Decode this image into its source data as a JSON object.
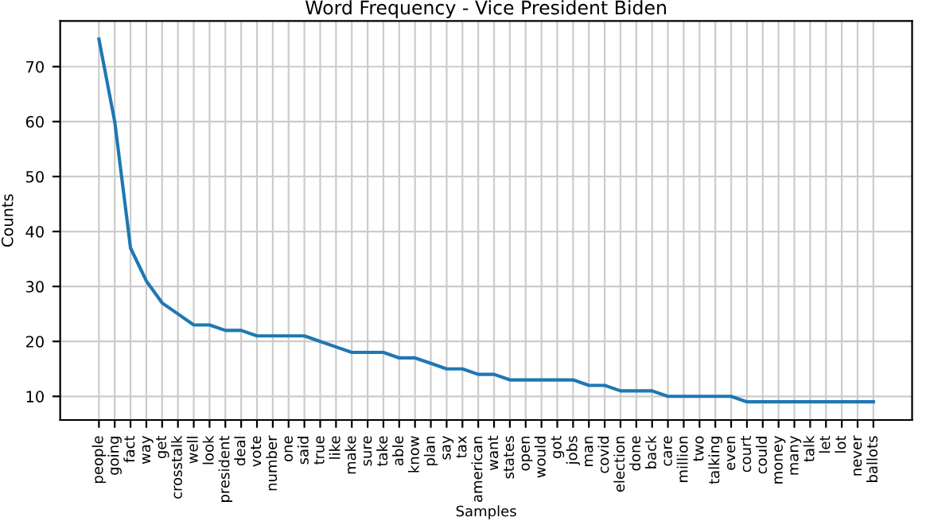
{
  "chart_data": {
    "type": "line",
    "title": "Word Frequency - Vice President Biden",
    "xlabel": "Samples",
    "ylabel": "Counts",
    "categories": [
      "people",
      "going",
      "fact",
      "way",
      "get",
      "crosstalk",
      "well",
      "look",
      "president",
      "deal",
      "vote",
      "number",
      "one",
      "said",
      "true",
      "like",
      "make",
      "sure",
      "take",
      "able",
      "know",
      "plan",
      "say",
      "tax",
      "american",
      "want",
      "states",
      "open",
      "would",
      "got",
      "jobs",
      "man",
      "covid",
      "election",
      "done",
      "back",
      "care",
      "million",
      "two",
      "talking",
      "even",
      "court",
      "could",
      "money",
      "many",
      "talk",
      "let",
      "lot",
      "never",
      "ballots"
    ],
    "series": [
      {
        "color": "#1f77b4",
        "values": [
          75,
          60,
          37,
          31,
          27,
          25,
          23,
          23,
          22,
          22,
          21,
          21,
          21,
          21,
          20,
          19,
          18,
          18,
          18,
          17,
          17,
          16,
          15,
          15,
          14,
          14,
          13,
          13,
          13,
          13,
          13,
          12,
          12,
          11,
          11,
          11,
          10,
          10,
          10,
          10,
          10,
          9,
          9,
          9,
          9,
          9,
          9,
          9,
          9,
          9
        ]
      }
    ],
    "ylim": [
      5.7,
      78.3
    ],
    "yticks": [
      10,
      20,
      30,
      40,
      50,
      60,
      70
    ],
    "grid": true,
    "marker": "none",
    "line_style": "solid"
  }
}
